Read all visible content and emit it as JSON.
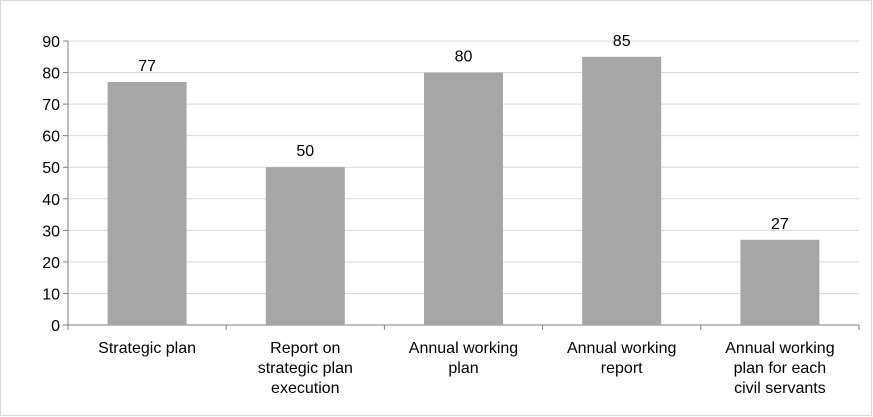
{
  "chart_data": {
    "type": "bar",
    "title": "",
    "xlabel": "",
    "ylabel": "",
    "categories": [
      [
        "Strategic plan"
      ],
      [
        "Report on",
        "strategic plan",
        "execution"
      ],
      [
        "Annual working",
        "plan"
      ],
      [
        "Annual working",
        "report"
      ],
      [
        "Annual working",
        "plan for each",
        "civil servants"
      ]
    ],
    "values": [
      77,
      50,
      80,
      85,
      27
    ],
    "data_labels": [
      "77",
      "50",
      "80",
      "85",
      "27"
    ],
    "ylim": [
      0,
      90
    ],
    "yticks": [
      "0",
      "10",
      "20",
      "30",
      "40",
      "50",
      "60",
      "70",
      "80",
      "90"
    ],
    "grid": true,
    "legend": "none",
    "colors": {
      "bar": "#a6a6a6",
      "grid": "#d9d9d9",
      "axis": "#7f7f7f",
      "text": "#000000"
    }
  }
}
